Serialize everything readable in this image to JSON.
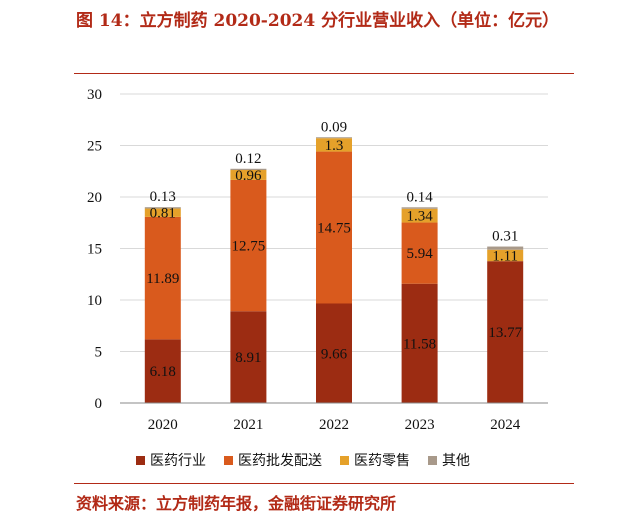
{
  "header": {
    "title": "图 14：立方制药 2020-2024 分行业营业收入（单位：亿元）"
  },
  "footer": {
    "source": "资料来源：立方制药年报，金融街证券研究所"
  },
  "colors": {
    "series": [
      "#9c2c12",
      "#d95a1d",
      "#e5a12a",
      "#a8998a"
    ]
  },
  "chart_data": {
    "type": "bar",
    "stacked": true,
    "categories": [
      "2020",
      "2021",
      "2022",
      "2023",
      "2024"
    ],
    "series": [
      {
        "name": "医药行业",
        "values": [
          6.18,
          8.91,
          9.66,
          11.58,
          13.77
        ]
      },
      {
        "name": "医药批发配送",
        "values": [
          11.89,
          12.75,
          14.75,
          5.94,
          0
        ]
      },
      {
        "name": "医药零售",
        "values": [
          0.81,
          0.96,
          1.3,
          1.34,
          1.11
        ]
      },
      {
        "name": "其他",
        "values": [
          0.13,
          0.12,
          0.09,
          0.14,
          0.31
        ]
      }
    ],
    "labels": [
      [
        "6.18",
        "8.91",
        "9.66",
        "11.58",
        "13.77"
      ],
      [
        "11.89",
        "12.75",
        "14.75",
        "5.94",
        ""
      ],
      [
        "0.81",
        "0.96",
        "1.3",
        "1.34",
        "1.11"
      ],
      [
        "0.13",
        "0.12",
        "0.09",
        "0.14",
        "0.31"
      ]
    ],
    "yticks": [
      "0",
      "5",
      "10",
      "15",
      "20",
      "25",
      "30"
    ],
    "ylim": [
      0,
      30
    ],
    "grid": true,
    "legend_position": "bottom"
  }
}
